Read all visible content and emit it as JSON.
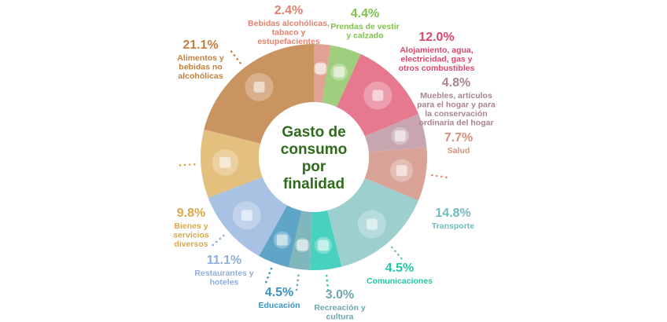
{
  "chart_data": {
    "type": "pie",
    "style": "donut",
    "title": [
      "Gasto de",
      "consumo",
      "por",
      "finalidad"
    ],
    "unit": "%",
    "slices": [
      {
        "value": 2.4,
        "pct": "2.4%",
        "label": [
          "Bebidas alcohólicas,",
          "tabaco y",
          "estupefacientes"
        ],
        "color": "#e0a393",
        "text_color": "#e0826f",
        "icon": "liquor-bottle-icon"
      },
      {
        "value": 4.4,
        "pct": "4.4%",
        "label": [
          "Prendas de vestir",
          "y calzado"
        ],
        "color": "#9fcf7c",
        "text_color": "#82c14f",
        "icon": "high-heel-shoe-icon"
      },
      {
        "value": 12.0,
        "pct": "12.0%",
        "label": [
          "Alojamiento, agua,",
          "electricidad, gas y",
          "otros combustibles"
        ],
        "color": "#e6798e",
        "text_color": "#d9486b",
        "icon": "apartment-building-icon"
      },
      {
        "value": 4.8,
        "pct": "4.8%",
        "label": [
          "Muebles, artículos",
          "para el hogar y para",
          "la conservación",
          "ordinaria del hogar"
        ],
        "color": "#c8a6b0",
        "text_color": "#a9848f",
        "icon": "sofa-icon"
      },
      {
        "value": 7.7,
        "pct": "7.7%",
        "label": [
          "Salud"
        ],
        "color": "#d9a497",
        "text_color": "#d6907f",
        "icon": "stethoscope-icon"
      },
      {
        "value": 14.8,
        "pct": "14.8%",
        "label": [
          "Transporte"
        ],
        "color": "#9ccfce",
        "text_color": "#6fbcbf",
        "icon": "bus-icon"
      },
      {
        "value": 4.5,
        "pct": "4.5%",
        "label": [
          "Comunicaciones"
        ],
        "color": "#48d2bd",
        "text_color": "#24c6a8",
        "icon": "smartphone-icon"
      },
      {
        "value": 3.0,
        "pct": "3.0%",
        "label": [
          "Recreación y",
          "cultura"
        ],
        "color": "#7fb7bd",
        "text_color": "#6fa7b0",
        "icon": "basketball-icon"
      },
      {
        "value": 4.5,
        "pct": "4.5%",
        "label": [
          "Educación"
        ],
        "color": "#5fa5c7",
        "text_color": "#3b93c1",
        "icon": "books-icon"
      },
      {
        "value": 11.1,
        "pct": "11.1%",
        "label": [
          "Restaurantes y",
          "hoteles"
        ],
        "color": "#a9c1e3",
        "text_color": "#8eaedc",
        "icon": "restaurant-building-icon"
      },
      {
        "value": 9.8,
        "pct": "9.8%",
        "label": [
          "Bienes y",
          "servicios",
          "diversos"
        ],
        "color": "#e3c07d",
        "text_color": "#d8a84a",
        "icon": "shopping-bag-icon"
      },
      {
        "value": 21.1,
        "pct": "21.1%",
        "label": [
          "Alimentos y",
          "bebidas no",
          "alcohólicas"
        ],
        "color": "#c99460",
        "text_color": "#c1803f",
        "icon": "shopping-cart-icon"
      }
    ]
  }
}
